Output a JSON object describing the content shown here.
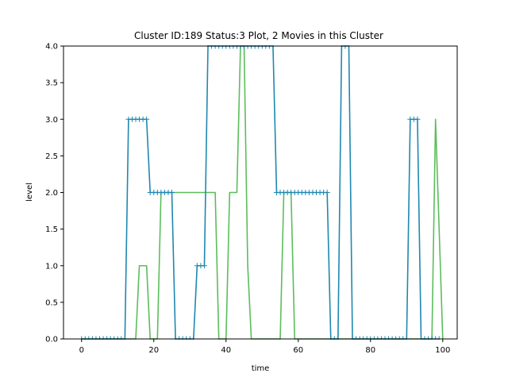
{
  "chart_data": {
    "type": "line",
    "title": "Cluster ID:189 Status:3 Plot, 2 Movies in this Cluster",
    "xlabel": "time",
    "ylabel": "level",
    "xlim": [
      -5,
      104
    ],
    "ylim": [
      0,
      4
    ],
    "xticks": [
      0,
      20,
      40,
      60,
      80,
      100
    ],
    "yticks": [
      0.0,
      0.5,
      1.0,
      1.5,
      2.0,
      2.5,
      3.0,
      3.5,
      4.0
    ],
    "xtick_labels": [
      "0",
      "20",
      "40",
      "60",
      "80",
      "100"
    ],
    "ytick_labels": [
      "0.0",
      "0.5",
      "1.0",
      "1.5",
      "2.0",
      "2.5",
      "3.0",
      "3.5",
      "4.0"
    ],
    "grid": false,
    "legend": false,
    "series": [
      {
        "color": "#5cbd5c",
        "marker": "none",
        "x": [
          0,
          15,
          16,
          18,
          19,
          21,
          22,
          36,
          37,
          38,
          40,
          41,
          43,
          44,
          45,
          46,
          47,
          55,
          56,
          58,
          59,
          60,
          97,
          98,
          100
        ],
        "y": [
          0,
          0,
          1,
          1,
          0,
          0,
          2,
          2,
          2,
          0,
          0,
          2,
          2,
          4,
          4,
          1,
          0,
          0,
          2,
          2,
          0,
          0,
          0,
          3,
          0
        ]
      },
      {
        "color": "#1f88b0",
        "marker": "+",
        "x": [
          0,
          12,
          13,
          18,
          19,
          25,
          26,
          31,
          32,
          34,
          35,
          53,
          54,
          68,
          69,
          71,
          72,
          74,
          75,
          90,
          91,
          93,
          94,
          99
        ],
        "y": [
          0,
          0,
          3,
          3,
          2,
          2,
          0,
          0,
          1,
          1,
          4,
          4,
          2,
          2,
          0,
          0,
          4,
          4,
          0,
          0,
          3,
          3,
          0,
          0
        ]
      }
    ]
  }
}
